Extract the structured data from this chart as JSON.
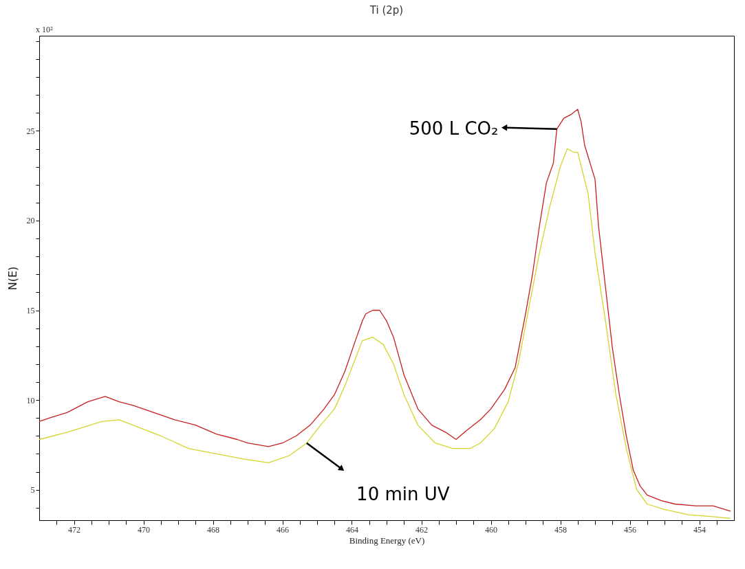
{
  "chart_data": {
    "type": "line",
    "title": "Ti (2p)",
    "xlabel": "Binding Energy (eV)",
    "ylabel": "N(E)",
    "xlim": [
      473,
      453
    ],
    "ylim": [
      3.3,
      30.3
    ],
    "xticks": [
      {
        "value": 472.5,
        "label": null
      },
      472,
      {
        "value": 471.5,
        "label": null
      },
      {
        "value": 471,
        "label": null
      },
      {
        "value": 470.5,
        "label": null
      },
      470,
      {
        "value": 469.5,
        "label": null
      },
      {
        "value": 469,
        "label": null
      },
      {
        "value": 468.5,
        "label": null
      },
      468,
      {
        "value": 467.5,
        "label": null
      },
      {
        "value": 467,
        "label": null
      },
      {
        "value": 466.5,
        "label": null
      },
      466,
      {
        "value": 465.5,
        "label": null
      },
      {
        "value": 465,
        "label": null
      },
      {
        "value": 464.5,
        "label": null
      },
      464,
      {
        "value": 463.5,
        "label": null
      },
      {
        "value": 463,
        "label": null
      },
      {
        "value": 462.5,
        "label": null
      },
      462,
      {
        "value": 461.5,
        "label": null
      },
      {
        "value": 461,
        "label": null
      },
      {
        "value": 460.5,
        "label": null
      },
      460,
      {
        "value": 459.5,
        "label": null
      },
      {
        "value": 459,
        "label": null
      },
      {
        "value": 458.5,
        "label": null
      },
      458,
      {
        "value": 457.5,
        "label": null
      },
      {
        "value": 457,
        "label": null
      },
      {
        "value": 456.5,
        "label": null
      },
      456,
      {
        "value": 455.5,
        "label": null
      },
      {
        "value": 455,
        "label": null
      },
      {
        "value": 454.5,
        "label": null
      },
      454,
      {
        "value": 453.5,
        "label": null
      }
    ],
    "yticks": [
      {
        "value": 4,
        "label": null
      },
      5,
      {
        "value": 6,
        "label": null
      },
      {
        "value": 7,
        "label": null
      },
      {
        "value": 8,
        "label": null
      },
      {
        "value": 9,
        "label": null
      },
      10,
      {
        "value": 11,
        "label": null
      },
      {
        "value": 12,
        "label": null
      },
      {
        "value": 13,
        "label": null
      },
      {
        "value": 14,
        "label": null
      },
      15,
      {
        "value": 16,
        "label": null
      },
      {
        "value": 17,
        "label": null
      },
      {
        "value": 18,
        "label": null
      },
      {
        "value": 19,
        "label": null
      },
      20,
      {
        "value": 21,
        "label": null
      },
      {
        "value": 22,
        "label": null
      },
      {
        "value": 23,
        "label": null
      },
      {
        "value": 24,
        "label": null
      },
      25,
      {
        "value": 26,
        "label": null
      },
      {
        "value": 27,
        "label": null
      },
      {
        "value": 28,
        "label": null
      },
      {
        "value": 29,
        "label": null
      },
      {
        "value": 30,
        "label": null
      }
    ],
    "grid": false,
    "legend": false,
    "line_style": "solid",
    "marker": "none",
    "annotations": [
      "x 10²",
      {
        "text": "500 L CO₂",
        "x": 458.1,
        "y": 25.1
      },
      {
        "text": "10 min UV",
        "x": 465.3,
        "y": 7.6
      }
    ],
    "series": [
      {
        "color": "#c81e1e",
        "x": [
          473.0,
          472.7,
          472.2,
          471.6,
          471.1,
          470.7,
          470.3,
          469.7,
          469.1,
          468.5,
          467.9,
          467.3,
          467.0,
          466.4,
          466.0,
          465.6,
          465.2,
          464.8,
          464.5,
          464.2,
          463.9,
          463.7,
          463.6,
          463.4,
          463.2,
          463.0,
          462.8,
          462.5,
          462.1,
          461.7,
          461.3,
          461.0,
          460.7,
          460.3,
          460.0,
          459.6,
          459.3,
          459.0,
          458.8,
          458.6,
          458.4,
          458.2,
          458.1,
          457.9,
          457.7,
          457.5,
          457.4,
          457.3,
          457.0,
          456.9,
          456.7,
          456.5,
          456.3,
          456.1,
          455.9,
          455.7,
          455.5,
          455.1,
          454.7,
          454.1,
          453.6,
          453.1
        ],
        "values": [
          8.8,
          9.0,
          9.3,
          9.9,
          10.2,
          9.9,
          9.7,
          9.3,
          8.9,
          8.6,
          8.1,
          7.8,
          7.6,
          7.4,
          7.6,
          8.0,
          8.6,
          9.5,
          10.3,
          11.6,
          13.3,
          14.4,
          14.8,
          15.0,
          15.0,
          14.4,
          13.5,
          11.4,
          9.5,
          8.6,
          8.2,
          7.8,
          8.3,
          8.9,
          9.5,
          10.6,
          11.8,
          14.8,
          17.0,
          19.7,
          22.1,
          23.2,
          25.1,
          25.7,
          25.9,
          26.2,
          25.5,
          24.2,
          22.3,
          19.7,
          16.3,
          12.9,
          10.3,
          8.0,
          6.1,
          5.2,
          4.7,
          4.4,
          4.2,
          4.1,
          4.1,
          3.8
        ]
      },
      {
        "color": "#d4d42a",
        "x": [
          473.0,
          472.2,
          471.2,
          470.7,
          470.3,
          469.5,
          468.7,
          467.9,
          467.1,
          466.4,
          465.8,
          465.3,
          464.9,
          464.5,
          464.2,
          463.9,
          463.7,
          463.4,
          463.1,
          462.8,
          462.5,
          462.1,
          461.6,
          461.1,
          460.6,
          460.3,
          459.9,
          459.5,
          459.2,
          458.9,
          458.6,
          458.3,
          458.0,
          457.8,
          457.6,
          457.5,
          457.2,
          457.0,
          456.7,
          456.4,
          456.1,
          455.8,
          455.5,
          455.0,
          454.3,
          453.6,
          453.1
        ],
        "values": [
          7.8,
          8.2,
          8.8,
          8.9,
          8.6,
          8.0,
          7.3,
          7.0,
          6.7,
          6.5,
          6.9,
          7.6,
          8.6,
          9.5,
          10.8,
          12.3,
          13.3,
          13.5,
          13.1,
          12.0,
          10.3,
          8.6,
          7.6,
          7.3,
          7.3,
          7.6,
          8.4,
          9.9,
          12.1,
          15.2,
          18.2,
          20.8,
          23.0,
          24.0,
          23.8,
          23.8,
          21.5,
          18.2,
          14.4,
          10.3,
          7.3,
          5.0,
          4.2,
          3.9,
          3.6,
          3.5,
          3.4
        ]
      }
    ]
  }
}
